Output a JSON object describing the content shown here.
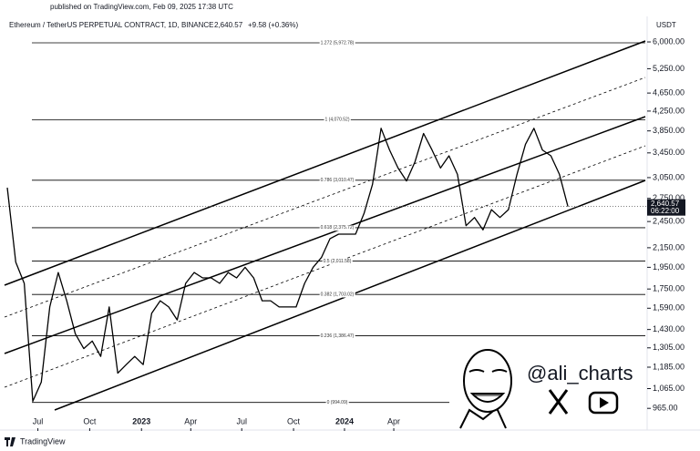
{
  "header": {
    "published": "published on TradingView.com, Feb 09, 2025 17:38 UTC",
    "symbol": "Ethereum / TetherUS PERPETUAL CONTRACT, 1D, BINANCE",
    "last": "2,640.57",
    "change": "+9.58 (+0.36%)"
  },
  "chart_data": {
    "type": "line",
    "currency": "USDT",
    "log_scale": true,
    "ylim": [
      874,
      6753
    ],
    "xlim": [
      0,
      72
    ],
    "yticks": [
      {
        "value": 6000,
        "label": "6,000.00"
      },
      {
        "value": 5250,
        "label": "5,250.00"
      },
      {
        "value": 4650,
        "label": "4,650.00"
      },
      {
        "value": 4250,
        "label": "4,250.00"
      },
      {
        "value": 3850,
        "label": "3,850.00"
      },
      {
        "value": 3450,
        "label": "3,450.00"
      },
      {
        "value": 3050,
        "label": "3,050.00"
      },
      {
        "value": 2750,
        "label": "2,750.00"
      },
      {
        "value": 2450,
        "label": "2,450.00"
      },
      {
        "value": 2150,
        "label": "2,150.00"
      },
      {
        "value": 1950,
        "label": "1,950.00"
      },
      {
        "value": 1750,
        "label": "1,750.00"
      },
      {
        "value": 1590,
        "label": "1,590.00"
      },
      {
        "value": 1430,
        "label": "1,430.00"
      },
      {
        "value": 1305,
        "label": "1,305.00"
      },
      {
        "value": 1185,
        "label": "1,185.00"
      },
      {
        "value": 1065,
        "label": "1,065.00"
      },
      {
        "value": 965,
        "label": "965.00"
      }
    ],
    "xticks": [
      {
        "value": 3.6,
        "label": "Jul"
      },
      {
        "value": 9.7,
        "label": "Oct"
      },
      {
        "value": 15.8,
        "label": "2023"
      },
      {
        "value": 21.6,
        "label": "Apr"
      },
      {
        "value": 27.6,
        "label": "Jul"
      },
      {
        "value": 33.7,
        "label": "Oct"
      },
      {
        "value": 39.7,
        "label": "2024"
      },
      {
        "value": 45.5,
        "label": "Apr"
      }
    ],
    "fib_levels": [
      {
        "value": 5972.78,
        "label": "1.272 (5,972.78)"
      },
      {
        "value": 4070.52,
        "label": "1 (4,070.52)"
      },
      {
        "value": 3010.47,
        "label": "0.786 (3,010.47)"
      },
      {
        "value": 2375.72,
        "label": "0.618 (2,375.72)"
      },
      {
        "value": 2011.58,
        "label": "0.5 (2,011.58)"
      },
      {
        "value": 1703.02,
        "label": "0.382 (1,703.02)"
      },
      {
        "value": 1386.47,
        "label": "0.236 (1,386.47)"
      },
      {
        "value": 994.09,
        "label": "0 (994.09)"
      }
    ],
    "series": [
      {
        "name": "ETHUSDT",
        "color": "#000000",
        "values": [
          2900,
          2000,
          1800,
          1000,
          1100,
          1600,
          1900,
          1650,
          1400,
          1300,
          1350,
          1250,
          1600,
          1150,
          1200,
          1250,
          1200,
          1550,
          1650,
          1600,
          1500,
          1800,
          1900,
          1850,
          1850,
          1800,
          1900,
          1850,
          1950,
          1850,
          1650,
          1650,
          1600,
          1600,
          1600,
          1800,
          1950,
          2050,
          2250,
          2300,
          2300,
          2300,
          2550,
          2950,
          3900,
          3500,
          3200,
          3000,
          3300,
          3800,
          3500,
          3200,
          3400,
          3100,
          2400,
          2500,
          2350,
          2600,
          2500,
          2600,
          3100,
          3600,
          3900,
          3500,
          3400,
          3100,
          2640.57
        ]
      }
    ],
    "last_price": {
      "value": 2640.57,
      "label": "2,640.57",
      "countdown": "06:22:00"
    }
  },
  "brand": {
    "handle": "@ali_charts",
    "footer": "TradingView"
  }
}
